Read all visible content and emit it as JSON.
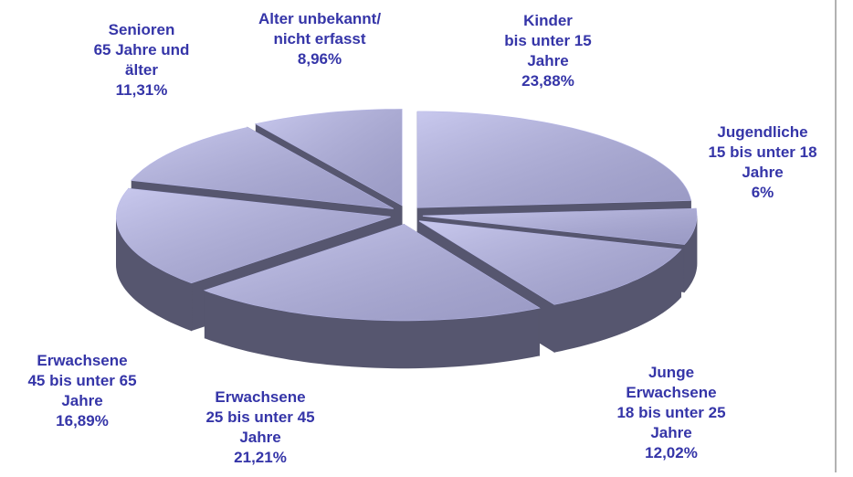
{
  "chart_data": {
    "type": "pie3d",
    "categories": [
      [
        "Kinder",
        "bis unter 15",
        "Jahre"
      ],
      [
        "Jugendliche",
        "15 bis unter 18",
        "Jahre"
      ],
      [
        "Junge",
        "Erwachsene",
        "18 bis unter 25",
        "Jahre"
      ],
      [
        "Erwachsene",
        "25 bis unter 45",
        "Jahre"
      ],
      [
        "Erwachsene",
        "45 bis unter 65",
        "Jahre"
      ],
      [
        "Senioren",
        "65 Jahre und",
        "älter"
      ],
      [
        "Alter unbekannt/",
        "nicht erfasst"
      ]
    ],
    "values": [
      23.88,
      6,
      12.02,
      21.21,
      16.89,
      11.31,
      8.96
    ],
    "value_labels": [
      "23,88%",
      "6%",
      "12,02%",
      "21,21%",
      "16,89%",
      "11,31%",
      "8,96%"
    ],
    "color": "#b6b6e8",
    "side_color": "#56566f",
    "label_color": "#3535a8"
  }
}
